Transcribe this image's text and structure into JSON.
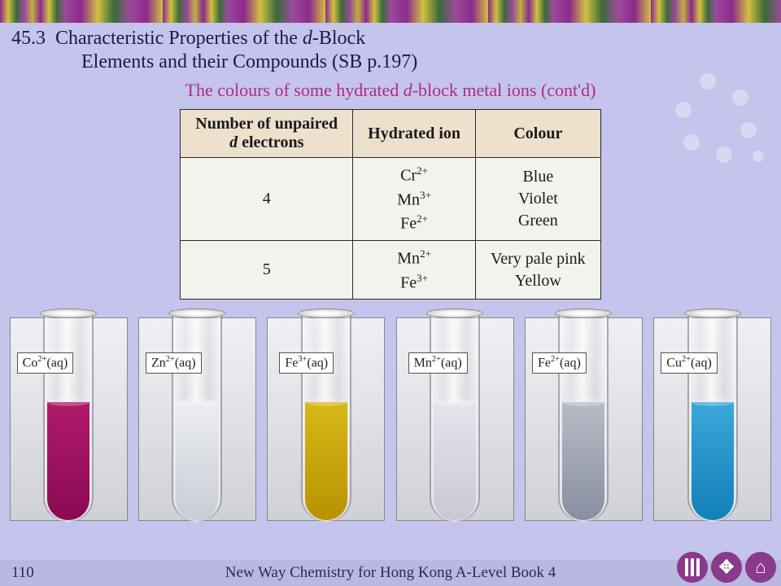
{
  "header": {
    "section_num": "45.3",
    "title_line1": "Characteristic Properties of the ",
    "title_ital": "d",
    "title_line1b": "-Block",
    "title_line2": "Elements and their Compounds (SB p.197)"
  },
  "subtitle": {
    "pre": "The colours of some hydrated ",
    "ital": "d",
    "post": "-block metal ions (cont'd)"
  },
  "table": {
    "columns": [
      {
        "label_pre": "Number of unpaired",
        "label_br": true,
        "ital": "d",
        "label_post": " electrons"
      },
      {
        "label": "Hydrated ion"
      },
      {
        "label": "Colour"
      }
    ],
    "rows": [
      {
        "n": "4",
        "ions": [
          {
            "el": "Cr",
            "charge": "2+"
          },
          {
            "el": "Mn",
            "charge": "3+"
          },
          {
            "el": "Fe",
            "charge": "2+"
          }
        ],
        "colours": [
          "Blue",
          "Violet",
          "Green"
        ]
      },
      {
        "n": "5",
        "ions": [
          {
            "el": "Mn",
            "charge": "2+"
          },
          {
            "el": "Fe",
            "charge": "3+"
          }
        ],
        "colours": [
          "Very pale pink",
          "Yellow"
        ]
      }
    ],
    "header_bg": "#ede0cc",
    "cell_bg": "#f3f3ee",
    "border_color": "#2a2a2a"
  },
  "tubes": [
    {
      "el": "Co",
      "charge": "2+",
      "state": "(aq)",
      "liquid_gradient": [
        "#b01a6a",
        "#8a0a52"
      ],
      "surface": "#d04a92"
    },
    {
      "el": "Zn",
      "charge": "2+",
      "state": "(aq)",
      "liquid_gradient": [
        "#eceef2",
        "#c8ccd4"
      ],
      "surface": "#ffffff"
    },
    {
      "el": "Fe",
      "charge": "3+",
      "state": "(aq)",
      "liquid_gradient": [
        "#d8b818",
        "#b89200"
      ],
      "surface": "#ecd24a"
    },
    {
      "el": "Mn",
      "charge": "2+",
      "state": "(aq)",
      "liquid_gradient": [
        "#e8e4ee",
        "#cac6d4"
      ],
      "surface": "#f4f0f8"
    },
    {
      "el": "Fe",
      "charge": "2+",
      "state": "(aq)",
      "liquid_gradient": [
        "#b8bcc6",
        "#888ea0"
      ],
      "surface": "#d8dce4"
    },
    {
      "el": "Cu",
      "charge": "2+",
      "state": "(aq)",
      "liquid_gradient": [
        "#3aa8d8",
        "#1280b8"
      ],
      "surface": "#6ac4ea"
    }
  ],
  "footer": {
    "page": "110",
    "book": "New Way Chemistry for Hong Kong A-Level Book 4",
    "page_right_shadow": "110"
  },
  "colors": {
    "page_bg": "#c4c4ec",
    "heading_text": "#1a1a4a",
    "subtitle_text": "#b02a8a",
    "nav_button": "#8a3a8a"
  }
}
